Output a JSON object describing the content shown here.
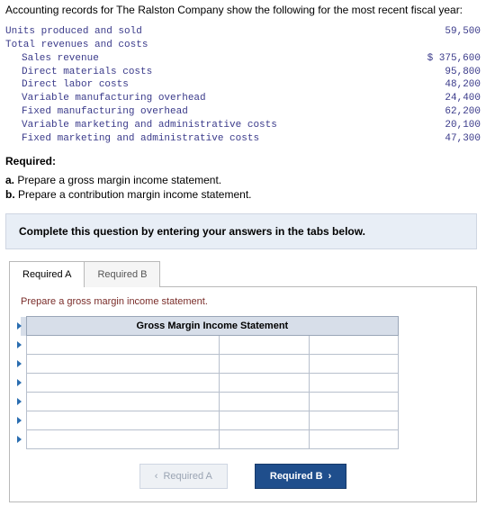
{
  "intro": "Accounting records for The Ralston Company show the following for the most recent fiscal year:",
  "records": {
    "rows": [
      {
        "label": "Units produced and sold",
        "value": "59,500",
        "indent": false,
        "prefix": ""
      },
      {
        "label": "Total revenues and costs",
        "value": "",
        "indent": false,
        "prefix": ""
      },
      {
        "label": "Sales revenue",
        "value": "375,600",
        "indent": true,
        "prefix": "$ "
      },
      {
        "label": "Direct materials costs",
        "value": "95,800",
        "indent": true,
        "prefix": ""
      },
      {
        "label": "Direct labor costs",
        "value": "48,200",
        "indent": true,
        "prefix": ""
      },
      {
        "label": "Variable manufacturing overhead",
        "value": "24,400",
        "indent": true,
        "prefix": ""
      },
      {
        "label": "Fixed manufacturing overhead",
        "value": "62,200",
        "indent": true,
        "prefix": ""
      },
      {
        "label": "Variable marketing and administrative costs",
        "value": "20,100",
        "indent": true,
        "prefix": ""
      },
      {
        "label": "Fixed marketing and administrative costs",
        "value": "47,300",
        "indent": true,
        "prefix": ""
      }
    ]
  },
  "required": {
    "heading": "Required:",
    "a": "Prepare a gross margin income statement.",
    "b": "Prepare a contribution margin income statement."
  },
  "bluebox": {
    "text": "Complete this question by entering your answers in the tabs below."
  },
  "tabs": {
    "a": "Required A",
    "b": "Required B"
  },
  "panel": {
    "instruction": "Prepare a gross margin income statement.",
    "table_title": "Gross Margin Income Statement",
    "row_count": 6
  },
  "nav": {
    "prev": "Required A",
    "next": "Required B"
  },
  "colors": {
    "mono_text": "#3a3a8a",
    "bluebox_bg": "#e8eef6",
    "table_header_bg": "#d7dee9",
    "next_btn_bg": "#1f4e8c"
  }
}
